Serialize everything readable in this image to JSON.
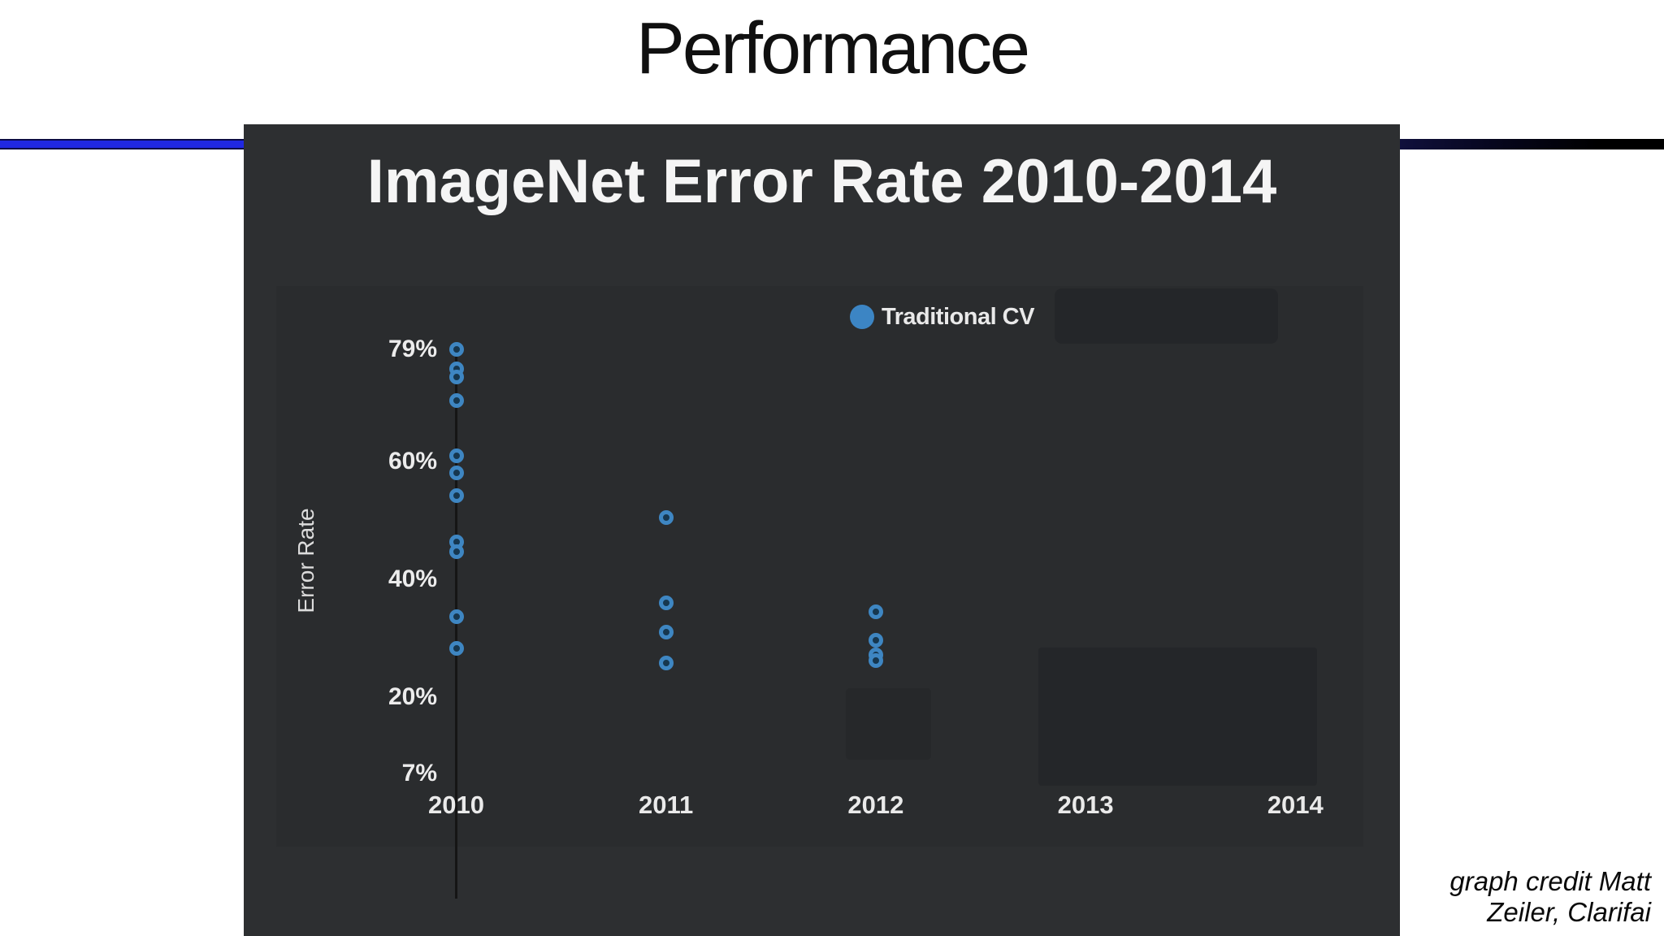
{
  "slide": {
    "title": "Performance",
    "credit": {
      "line1": "graph credit Matt",
      "line2": "Zeiler, Clarifai"
    },
    "accent_colors": {
      "left_bar": "#2028e2",
      "right_bar": "#0a0a2e"
    }
  },
  "chart": {
    "title": "ImageNet Error Rate 2010-2014",
    "background_color": "#2d2f31",
    "y_axis_label": "Error Rate",
    "legend": {
      "items": [
        {
          "label": "Traditional CV",
          "color": "#3c85c4"
        }
      ]
    }
  },
  "chart_data": {
    "type": "scatter",
    "title": "ImageNet Error Rate 2010-2014",
    "xlabel": "",
    "ylabel": "Error Rate",
    "ylim": [
      7,
      79
    ],
    "grid": false,
    "legend_position": "top-right",
    "x_ticks": [
      {
        "label": "2010",
        "value": 2010
      },
      {
        "label": "2011",
        "value": 2011
      },
      {
        "label": "2012",
        "value": 2012
      },
      {
        "label": "2013",
        "value": 2013
      },
      {
        "label": "2014",
        "value": 2014
      }
    ],
    "y_ticks": [
      {
        "label": "79%",
        "value": 79
      },
      {
        "label": "60%",
        "value": 60
      },
      {
        "label": "40%",
        "value": 40
      },
      {
        "label": "20%",
        "value": 20
      },
      {
        "label": "7%",
        "value": 7
      }
    ],
    "series": [
      {
        "name": "Traditional CV",
        "color": "#3c85c4",
        "points": [
          {
            "year": 2010,
            "error": 79.0
          },
          {
            "year": 2010,
            "error": 75.7
          },
          {
            "year": 2010,
            "error": 74.3
          },
          {
            "year": 2010,
            "error": 70.3
          },
          {
            "year": 2010,
            "error": 60.9
          },
          {
            "year": 2010,
            "error": 58.1
          },
          {
            "year": 2010,
            "error": 54.2
          },
          {
            "year": 2010,
            "error": 46.3
          },
          {
            "year": 2010,
            "error": 44.6
          },
          {
            "year": 2010,
            "error": 33.6
          },
          {
            "year": 2010,
            "error": 28.2
          },
          {
            "year": 2011,
            "error": 50.5
          },
          {
            "year": 2011,
            "error": 36.0
          },
          {
            "year": 2011,
            "error": 31.0
          },
          {
            "year": 2011,
            "error": 25.8
          },
          {
            "year": 2012,
            "error": 34.5
          },
          {
            "year": 2012,
            "error": 29.6
          },
          {
            "year": 2012,
            "error": 27.1
          },
          {
            "year": 2012,
            "error": 26.2
          }
        ]
      }
    ]
  }
}
